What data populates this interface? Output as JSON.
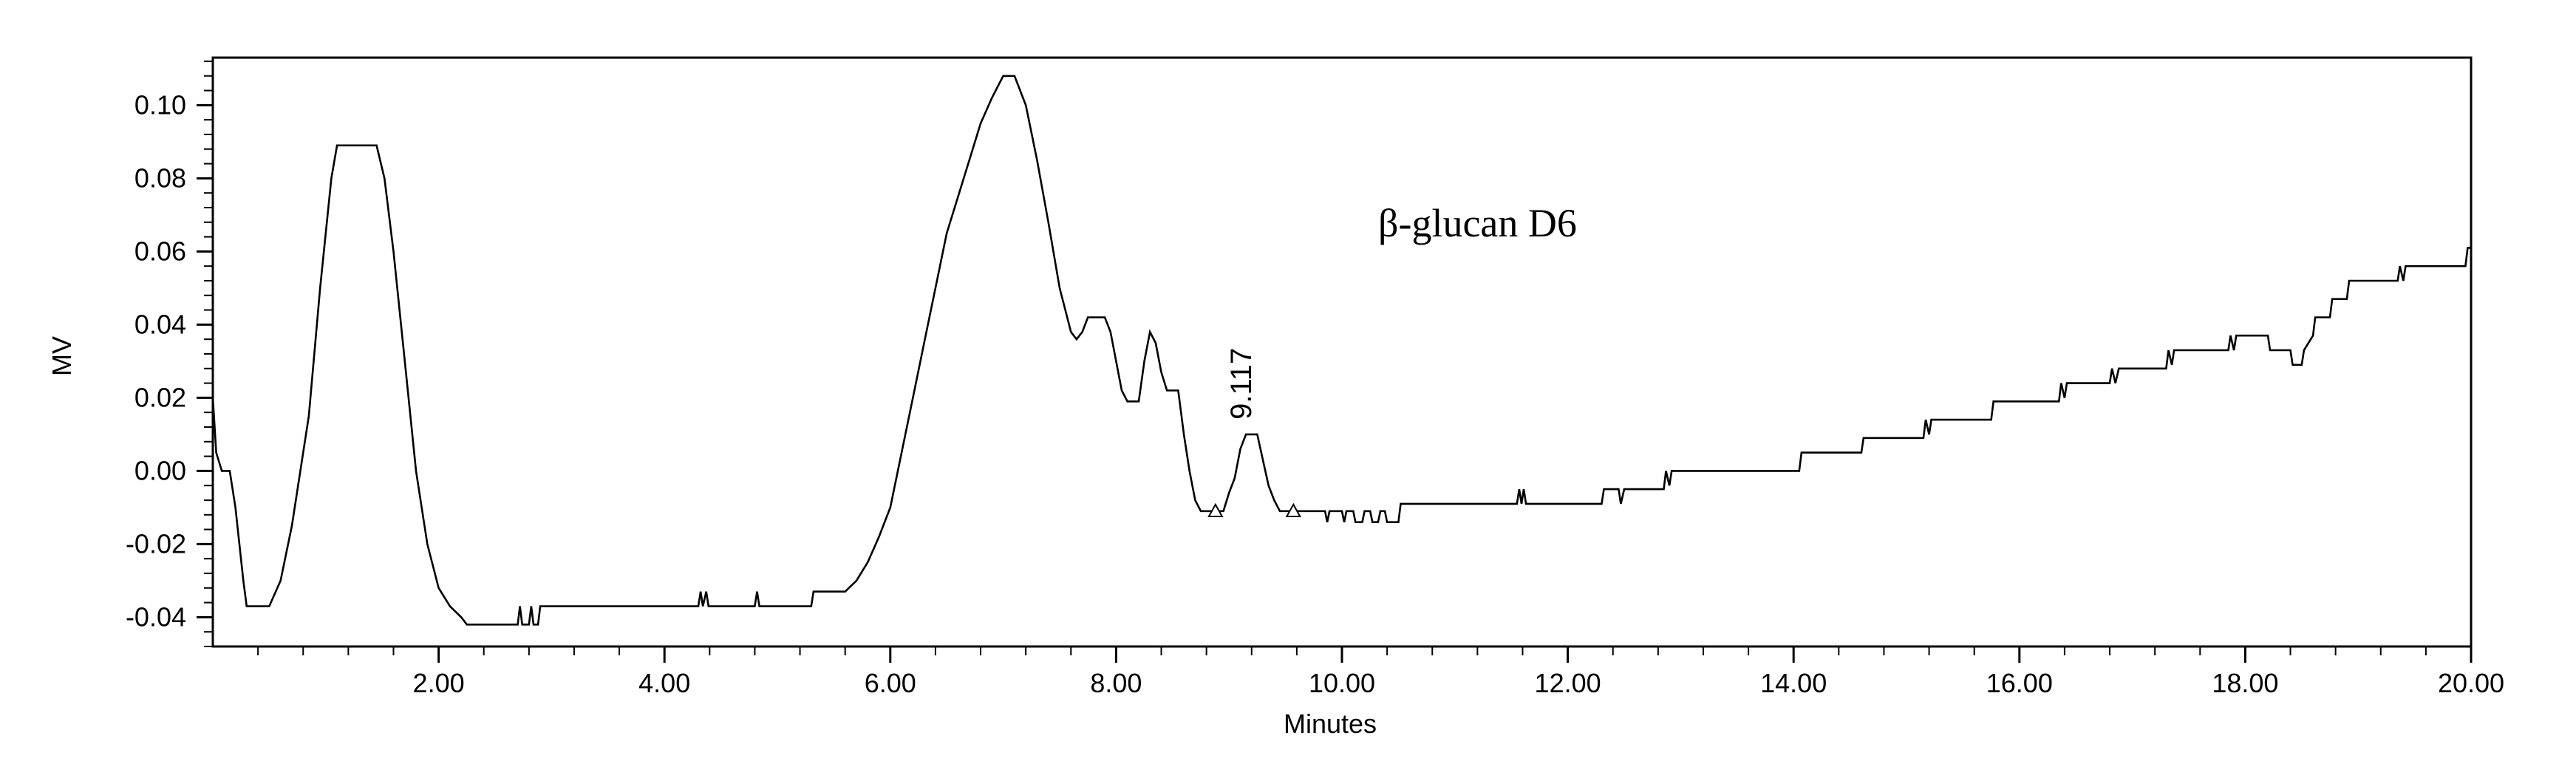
{
  "chart_data": {
    "type": "line",
    "xlabel": "Minutes",
    "ylabel": "MV",
    "xlim": [
      0,
      20
    ],
    "ylim": [
      -0.048,
      0.113
    ],
    "xticks": [
      2,
      4,
      6,
      8,
      10,
      12,
      14,
      16,
      18,
      20
    ],
    "xtick_labels": [
      "2.00",
      "4.00",
      "6.00",
      "8.00",
      "10.00",
      "12.00",
      "14.00",
      "16.00",
      "18.00",
      "20.00"
    ],
    "yticks": [
      -0.04,
      -0.02,
      0.0,
      0.02,
      0.04,
      0.06,
      0.08,
      0.1
    ],
    "ytick_labels": [
      "-0.04",
      "-0.02",
      "0.00",
      "0.02",
      "0.04",
      "0.06",
      "0.08",
      "0.10"
    ],
    "grid": false,
    "annotation": "β-glucan D6",
    "peak_label": {
      "text": "9.117",
      "x": 9.117,
      "y": 0.01
    },
    "integration_markers": [
      {
        "x": 8.88,
        "y": -0.011
      },
      {
        "x": 9.57,
        "y": -0.011
      }
    ],
    "series": [
      {
        "values": [
          [
            0.0,
            0.02
          ],
          [
            0.03,
            0.005
          ],
          [
            0.08,
            0.0
          ],
          [
            0.15,
            0.0
          ],
          [
            0.2,
            -0.01
          ],
          [
            0.27,
            -0.03
          ],
          [
            0.3,
            -0.037
          ],
          [
            0.5,
            -0.037
          ],
          [
            0.6,
            -0.03
          ],
          [
            0.7,
            -0.015
          ],
          [
            0.85,
            0.015
          ],
          [
            0.95,
            0.05
          ],
          [
            1.05,
            0.08
          ],
          [
            1.1,
            0.089
          ],
          [
            1.45,
            0.089
          ],
          [
            1.52,
            0.08
          ],
          [
            1.6,
            0.06
          ],
          [
            1.7,
            0.03
          ],
          [
            1.8,
            0.0
          ],
          [
            1.9,
            -0.02
          ],
          [
            2.0,
            -0.032
          ],
          [
            2.1,
            -0.037
          ],
          [
            2.2,
            -0.04
          ],
          [
            2.25,
            -0.042
          ],
          [
            2.7,
            -0.042
          ],
          [
            2.72,
            -0.037
          ],
          [
            2.74,
            -0.042
          ],
          [
            2.8,
            -0.042
          ],
          [
            2.82,
            -0.037
          ],
          [
            2.84,
            -0.042
          ],
          [
            2.88,
            -0.042
          ],
          [
            2.9,
            -0.037
          ],
          [
            4.3,
            -0.037
          ],
          [
            4.32,
            -0.033
          ],
          [
            4.34,
            -0.037
          ],
          [
            4.37,
            -0.033
          ],
          [
            4.39,
            -0.037
          ],
          [
            4.8,
            -0.037
          ],
          [
            4.82,
            -0.033
          ],
          [
            4.84,
            -0.037
          ],
          [
            5.3,
            -0.037
          ],
          [
            5.32,
            -0.033
          ],
          [
            5.6,
            -0.033
          ],
          [
            5.7,
            -0.03
          ],
          [
            5.8,
            -0.025
          ],
          [
            5.9,
            -0.018
          ],
          [
            6.0,
            -0.01
          ],
          [
            6.1,
            0.005
          ],
          [
            6.2,
            0.02
          ],
          [
            6.3,
            0.035
          ],
          [
            6.4,
            0.05
          ],
          [
            6.5,
            0.065
          ],
          [
            6.6,
            0.075
          ],
          [
            6.7,
            0.085
          ],
          [
            6.8,
            0.095
          ],
          [
            6.9,
            0.102
          ],
          [
            7.0,
            0.108
          ],
          [
            7.1,
            0.108
          ],
          [
            7.2,
            0.1
          ],
          [
            7.3,
            0.085
          ],
          [
            7.4,
            0.068
          ],
          [
            7.5,
            0.05
          ],
          [
            7.6,
            0.038
          ],
          [
            7.65,
            0.036
          ],
          [
            7.7,
            0.038
          ],
          [
            7.75,
            0.042
          ],
          [
            7.9,
            0.042
          ],
          [
            7.95,
            0.038
          ],
          [
            8.0,
            0.03
          ],
          [
            8.05,
            0.022
          ],
          [
            8.1,
            0.019
          ],
          [
            8.2,
            0.019
          ],
          [
            8.25,
            0.03
          ],
          [
            8.3,
            0.038
          ],
          [
            8.35,
            0.035
          ],
          [
            8.4,
            0.027
          ],
          [
            8.45,
            0.022
          ],
          [
            8.55,
            0.022
          ],
          [
            8.6,
            0.01
          ],
          [
            8.65,
            0.0
          ],
          [
            8.7,
            -0.008
          ],
          [
            8.75,
            -0.011
          ],
          [
            8.95,
            -0.011
          ],
          [
            9.0,
            -0.006
          ],
          [
            9.05,
            -0.002
          ],
          [
            9.1,
            0.006
          ],
          [
            9.15,
            0.01
          ],
          [
            9.25,
            0.01
          ],
          [
            9.3,
            0.003
          ],
          [
            9.35,
            -0.004
          ],
          [
            9.4,
            -0.008
          ],
          [
            9.45,
            -0.011
          ],
          [
            9.85,
            -0.011
          ],
          [
            9.87,
            -0.014
          ],
          [
            9.89,
            -0.011
          ],
          [
            10.0,
            -0.011
          ],
          [
            10.02,
            -0.014
          ],
          [
            10.04,
            -0.011
          ],
          [
            10.1,
            -0.011
          ],
          [
            10.12,
            -0.014
          ],
          [
            10.18,
            -0.014
          ],
          [
            10.2,
            -0.011
          ],
          [
            10.25,
            -0.011
          ],
          [
            10.27,
            -0.014
          ],
          [
            10.32,
            -0.014
          ],
          [
            10.34,
            -0.011
          ],
          [
            10.38,
            -0.011
          ],
          [
            10.4,
            -0.014
          ],
          [
            10.5,
            -0.014
          ],
          [
            10.52,
            -0.009
          ],
          [
            11.55,
            -0.009
          ],
          [
            11.57,
            -0.005
          ],
          [
            11.59,
            -0.009
          ],
          [
            11.61,
            -0.005
          ],
          [
            11.63,
            -0.009
          ],
          [
            12.3,
            -0.009
          ],
          [
            12.32,
            -0.005
          ],
          [
            12.45,
            -0.005
          ],
          [
            12.47,
            -0.009
          ],
          [
            12.5,
            -0.005
          ],
          [
            12.85,
            -0.005
          ],
          [
            12.87,
            0.0
          ],
          [
            12.9,
            -0.004
          ],
          [
            12.92,
            0.0
          ],
          [
            14.05,
            0.0
          ],
          [
            14.07,
            0.005
          ],
          [
            14.6,
            0.005
          ],
          [
            14.62,
            0.009
          ],
          [
            15.15,
            0.009
          ],
          [
            15.17,
            0.014
          ],
          [
            15.2,
            0.01
          ],
          [
            15.22,
            0.014
          ],
          [
            15.75,
            0.014
          ],
          [
            15.77,
            0.019
          ],
          [
            16.35,
            0.019
          ],
          [
            16.37,
            0.024
          ],
          [
            16.4,
            0.02
          ],
          [
            16.42,
            0.024
          ],
          [
            16.8,
            0.024
          ],
          [
            16.82,
            0.028
          ],
          [
            16.85,
            0.024
          ],
          [
            16.88,
            0.028
          ],
          [
            17.3,
            0.028
          ],
          [
            17.32,
            0.033
          ],
          [
            17.35,
            0.029
          ],
          [
            17.37,
            0.033
          ],
          [
            17.85,
            0.033
          ],
          [
            17.87,
            0.037
          ],
          [
            17.9,
            0.033
          ],
          [
            17.92,
            0.037
          ],
          [
            18.2,
            0.037
          ],
          [
            18.22,
            0.033
          ],
          [
            18.4,
            0.033
          ],
          [
            18.42,
            0.029
          ],
          [
            18.5,
            0.029
          ],
          [
            18.52,
            0.033
          ],
          [
            18.6,
            0.037
          ],
          [
            18.62,
            0.042
          ],
          [
            18.75,
            0.042
          ],
          [
            18.77,
            0.047
          ],
          [
            18.9,
            0.047
          ],
          [
            18.92,
            0.052
          ],
          [
            19.35,
            0.052
          ],
          [
            19.37,
            0.056
          ],
          [
            19.4,
            0.052
          ],
          [
            19.42,
            0.056
          ],
          [
            19.95,
            0.056
          ],
          [
            19.97,
            0.061
          ],
          [
            20.0,
            0.061
          ]
        ]
      }
    ]
  }
}
